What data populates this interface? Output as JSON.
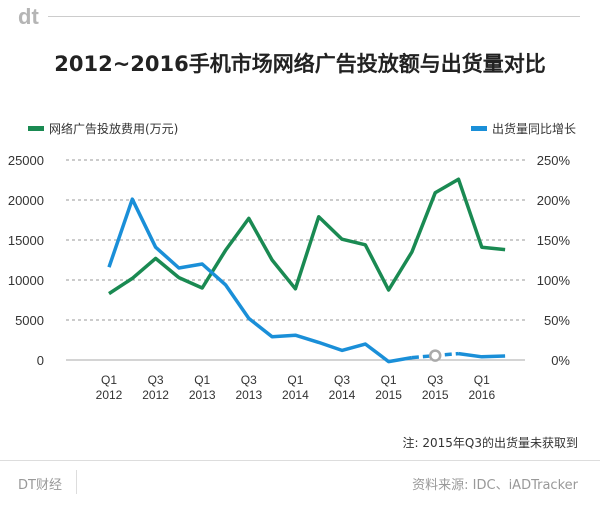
{
  "logo": "dt",
  "title": "2012~2016手机市场网络广告投放额与出货量对比",
  "note": "注: 2015年Q3的出货量未获取到",
  "footer": {
    "brand": "DT财经",
    "source": "资料来源: IDC、iADTracker"
  },
  "chart_data": {
    "type": "line",
    "title": "2012~2016手机市场网络广告投放额与出货量对比",
    "categories": [
      "Q1 2012",
      "Q2 2012",
      "Q3 2012",
      "Q4 2012",
      "Q1 2013",
      "Q2 2013",
      "Q3 2013",
      "Q4 2013",
      "Q1 2014",
      "Q2 2014",
      "Q3 2014",
      "Q4 2014",
      "Q1 2015",
      "Q2 2015",
      "Q3 2015",
      "Q4 2015",
      "Q1 2016",
      "Q2 2016"
    ],
    "xticks": [
      {
        "q": "Q1",
        "y": "2012"
      },
      {
        "q": "Q3",
        "y": "2012"
      },
      {
        "q": "Q1",
        "y": "2013"
      },
      {
        "q": "Q3",
        "y": "2013"
      },
      {
        "q": "Q1",
        "y": "2014"
      },
      {
        "q": "Q3",
        "y": "2014"
      },
      {
        "q": "Q1",
        "y": "2015"
      },
      {
        "q": "Q3",
        "y": "2015"
      },
      {
        "q": "Q1",
        "y": "2016"
      }
    ],
    "y_left": {
      "range": [
        0,
        25000
      ],
      "ticks": [
        "0",
        "5000",
        "10000",
        "15000",
        "20000",
        "25000"
      ]
    },
    "y_right": {
      "range": [
        0,
        250
      ],
      "ticks": [
        "0%",
        "50%",
        "100%",
        "150%",
        "200%",
        "250%"
      ]
    },
    "grid": true,
    "legend_placement": "top",
    "series": [
      {
        "name": "网络广告投放费用(万元)",
        "axis": "left",
        "color": "#1a8a52",
        "values": [
          8300,
          10200,
          12700,
          10300,
          9000,
          13700,
          17700,
          12500,
          8900,
          17900,
          15100,
          14400,
          8750,
          13500,
          20900,
          22600,
          14100,
          13800
        ]
      },
      {
        "name": "出货量同比增长",
        "axis": "right",
        "color": "#1a8fd8",
        "unit": "%",
        "values": [
          116,
          201,
          141,
          115,
          120,
          94,
          52,
          29,
          31,
          22,
          12,
          20,
          -2,
          3,
          null,
          8,
          4,
          5
        ]
      }
    ]
  }
}
